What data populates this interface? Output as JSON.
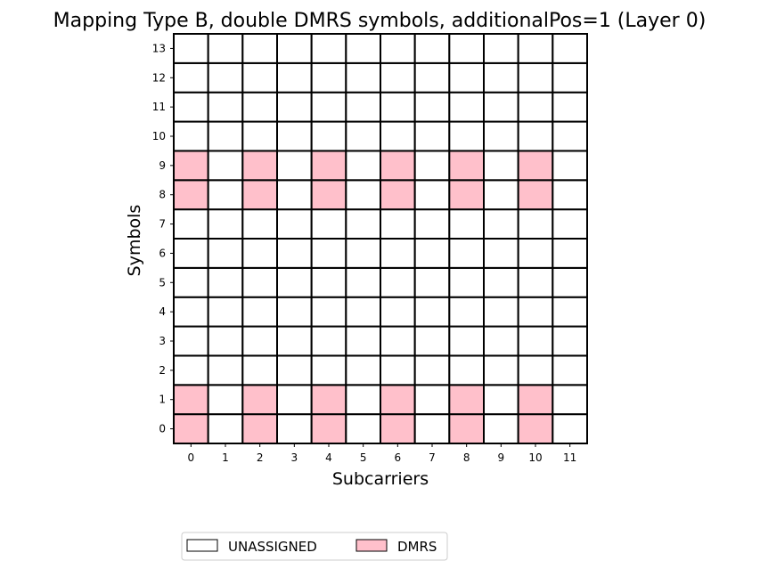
{
  "chart_data": {
    "type": "heatmap",
    "title": "Mapping Type B, double DMRS symbols, additionalPos=1 (Layer 0)",
    "xlabel": "Subcarriers",
    "ylabel": "Symbols",
    "x": [
      0,
      1,
      2,
      3,
      4,
      5,
      6,
      7,
      8,
      9,
      10,
      11
    ],
    "y": [
      0,
      1,
      2,
      3,
      4,
      5,
      6,
      7,
      8,
      9,
      10,
      11,
      12,
      13
    ],
    "xlim": [
      -0.5,
      11.5
    ],
    "ylim": [
      -0.5,
      13.5
    ],
    "grid": false,
    "legend_position": "bottom",
    "legend": [
      {
        "label": "UNASSIGNED",
        "color": "#ffffff"
      },
      {
        "label": "DMRS",
        "color": "#ffc0cb"
      }
    ],
    "cells": {
      "rows_symbol_0_to_13": [
        [
          "DMRS",
          "UNASSIGNED",
          "DMRS",
          "UNASSIGNED",
          "DMRS",
          "UNASSIGNED",
          "DMRS",
          "UNASSIGNED",
          "DMRS",
          "UNASSIGNED",
          "DMRS",
          "UNASSIGNED"
        ],
        [
          "DMRS",
          "UNASSIGNED",
          "DMRS",
          "UNASSIGNED",
          "DMRS",
          "UNASSIGNED",
          "DMRS",
          "UNASSIGNED",
          "DMRS",
          "UNASSIGNED",
          "DMRS",
          "UNASSIGNED"
        ],
        [
          "UNASSIGNED",
          "UNASSIGNED",
          "UNASSIGNED",
          "UNASSIGNED",
          "UNASSIGNED",
          "UNASSIGNED",
          "UNASSIGNED",
          "UNASSIGNED",
          "UNASSIGNED",
          "UNASSIGNED",
          "UNASSIGNED",
          "UNASSIGNED"
        ],
        [
          "UNASSIGNED",
          "UNASSIGNED",
          "UNASSIGNED",
          "UNASSIGNED",
          "UNASSIGNED",
          "UNASSIGNED",
          "UNASSIGNED",
          "UNASSIGNED",
          "UNASSIGNED",
          "UNASSIGNED",
          "UNASSIGNED",
          "UNASSIGNED"
        ],
        [
          "UNASSIGNED",
          "UNASSIGNED",
          "UNASSIGNED",
          "UNASSIGNED",
          "UNASSIGNED",
          "UNASSIGNED",
          "UNASSIGNED",
          "UNASSIGNED",
          "UNASSIGNED",
          "UNASSIGNED",
          "UNASSIGNED",
          "UNASSIGNED"
        ],
        [
          "UNASSIGNED",
          "UNASSIGNED",
          "UNASSIGNED",
          "UNASSIGNED",
          "UNASSIGNED",
          "UNASSIGNED",
          "UNASSIGNED",
          "UNASSIGNED",
          "UNASSIGNED",
          "UNASSIGNED",
          "UNASSIGNED",
          "UNASSIGNED"
        ],
        [
          "UNASSIGNED",
          "UNASSIGNED",
          "UNASSIGNED",
          "UNASSIGNED",
          "UNASSIGNED",
          "UNASSIGNED",
          "UNASSIGNED",
          "UNASSIGNED",
          "UNASSIGNED",
          "UNASSIGNED",
          "UNASSIGNED",
          "UNASSIGNED"
        ],
        [
          "UNASSIGNED",
          "UNASSIGNED",
          "UNASSIGNED",
          "UNASSIGNED",
          "UNASSIGNED",
          "UNASSIGNED",
          "UNASSIGNED",
          "UNASSIGNED",
          "UNASSIGNED",
          "UNASSIGNED",
          "UNASSIGNED",
          "UNASSIGNED"
        ],
        [
          "DMRS",
          "UNASSIGNED",
          "DMRS",
          "UNASSIGNED",
          "DMRS",
          "UNASSIGNED",
          "DMRS",
          "UNASSIGNED",
          "DMRS",
          "UNASSIGNED",
          "DMRS",
          "UNASSIGNED"
        ],
        [
          "DMRS",
          "UNASSIGNED",
          "DMRS",
          "UNASSIGNED",
          "DMRS",
          "UNASSIGNED",
          "DMRS",
          "UNASSIGNED",
          "DMRS",
          "UNASSIGNED",
          "DMRS",
          "UNASSIGNED"
        ],
        [
          "UNASSIGNED",
          "UNASSIGNED",
          "UNASSIGNED",
          "UNASSIGNED",
          "UNASSIGNED",
          "UNASSIGNED",
          "UNASSIGNED",
          "UNASSIGNED",
          "UNASSIGNED",
          "UNASSIGNED",
          "UNASSIGNED",
          "UNASSIGNED"
        ],
        [
          "UNASSIGNED",
          "UNASSIGNED",
          "UNASSIGNED",
          "UNASSIGNED",
          "UNASSIGNED",
          "UNASSIGNED",
          "UNASSIGNED",
          "UNASSIGNED",
          "UNASSIGNED",
          "UNASSIGNED",
          "UNASSIGNED",
          "UNASSIGNED"
        ],
        [
          "UNASSIGNED",
          "UNASSIGNED",
          "UNASSIGNED",
          "UNASSIGNED",
          "UNASSIGNED",
          "UNASSIGNED",
          "UNASSIGNED",
          "UNASSIGNED",
          "UNASSIGNED",
          "UNASSIGNED",
          "UNASSIGNED",
          "UNASSIGNED"
        ],
        [
          "UNASSIGNED",
          "UNASSIGNED",
          "UNASSIGNED",
          "UNASSIGNED",
          "UNASSIGNED",
          "UNASSIGNED",
          "UNASSIGNED",
          "UNASSIGNED",
          "UNASSIGNED",
          "UNASSIGNED",
          "UNASSIGNED",
          "UNASSIGNED"
        ]
      ]
    }
  }
}
